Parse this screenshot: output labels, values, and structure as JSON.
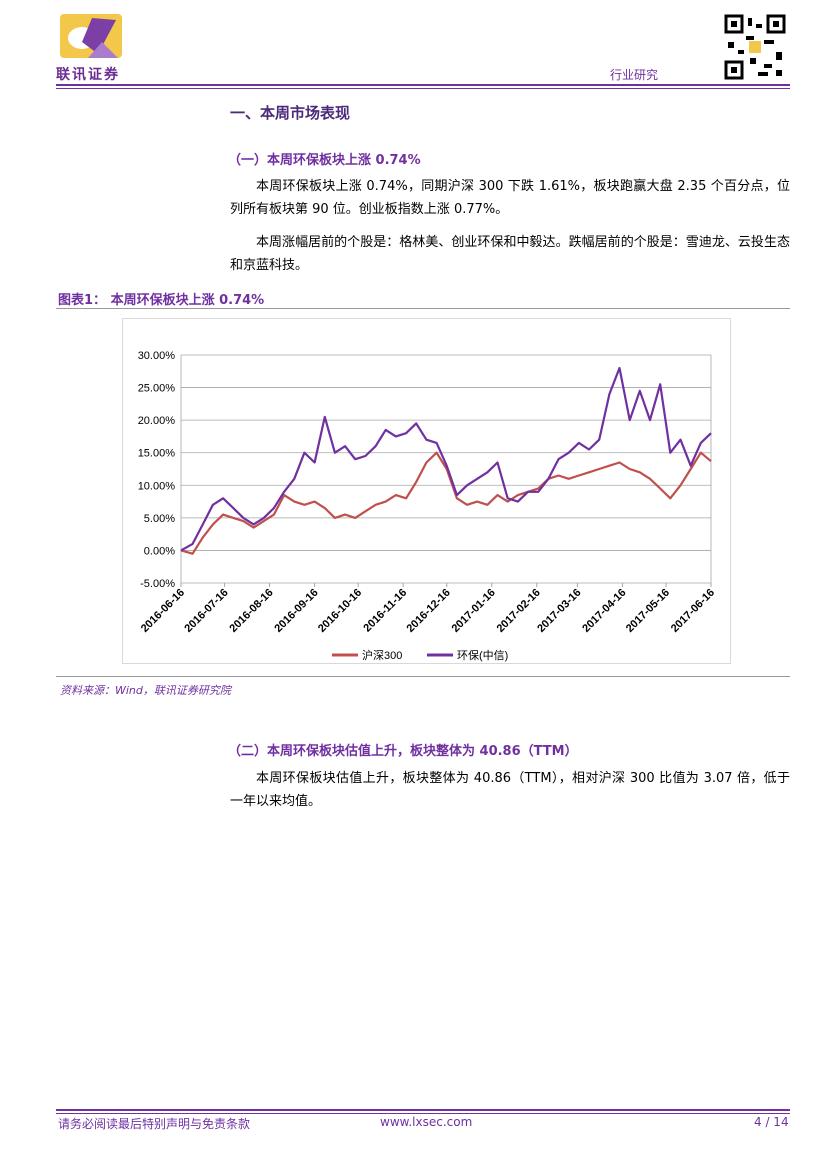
{
  "header": {
    "logo_text": "联讯证券",
    "category": "行业研究"
  },
  "section_title": "一、本周市场表现",
  "sub1": {
    "title": "（一）本周环保板块上涨 0.74%",
    "paragraphs": [
      "本周环保板块上涨 0.74%，同期沪深 300 下跌 1.61%，板块跑赢大盘 2.35 个百分点，位列所有板块第 90 位。创业板指数上涨 0.77%。",
      "本周涨幅居前的个股是：格林美、创业环保和中毅达。跌幅居前的个股是：雪迪龙、云投生态和京蓝科技。"
    ]
  },
  "figure": {
    "label": "图表1：",
    "title": "本周环保板块上涨 0.74%",
    "source": "资料来源：Wind，联讯证券研究院"
  },
  "chart_data": {
    "type": "line",
    "x": [
      "2016-06-16",
      "2016-06-24",
      "2016-07-01",
      "2016-07-08",
      "2016-07-15",
      "2016-07-22",
      "2016-07-29",
      "2016-08-05",
      "2016-08-12",
      "2016-08-19",
      "2016-08-26",
      "2016-09-02",
      "2016-09-09",
      "2016-09-16",
      "2016-09-23",
      "2016-09-30",
      "2016-10-07",
      "2016-10-14",
      "2016-10-21",
      "2016-10-28",
      "2016-11-04",
      "2016-11-11",
      "2016-11-18",
      "2016-11-25",
      "2016-12-02",
      "2016-12-09",
      "2016-12-16",
      "2016-12-23",
      "2016-12-30",
      "2017-01-06",
      "2017-01-13",
      "2017-01-20",
      "2017-01-27",
      "2017-02-03",
      "2017-02-10",
      "2017-02-17",
      "2017-02-24",
      "2017-03-03",
      "2017-03-10",
      "2017-03-17",
      "2017-03-24",
      "2017-03-31",
      "2017-04-07",
      "2017-04-14",
      "2017-04-21",
      "2017-04-28",
      "2017-05-05",
      "2017-05-12",
      "2017-05-19",
      "2017-05-26",
      "2017-06-02",
      "2017-06-09",
      "2017-06-16"
    ],
    "series": [
      {
        "name": "沪深300",
        "color": "#c0504d",
        "values": [
          0,
          -0.5,
          2,
          4,
          5.5,
          5,
          4.5,
          3.5,
          4.5,
          5.5,
          8.5,
          7.5,
          7,
          7.5,
          6.5,
          5,
          5.5,
          5,
          6,
          7,
          7.5,
          8.5,
          8,
          10.5,
          13.5,
          15,
          12.5,
          8,
          7,
          7.5,
          7,
          8.5,
          7.5,
          8.5,
          9,
          9.5,
          11,
          11.5,
          11,
          11.5,
          12,
          12.5,
          13,
          13.5,
          12.5,
          12,
          11,
          9.5,
          8,
          10,
          12.5,
          15,
          13.7
        ]
      },
      {
        "name": "环保(中信)",
        "color": "#7030a0",
        "values": [
          0,
          1,
          4,
          7,
          8,
          6.5,
          5,
          4,
          5,
          6.5,
          9,
          11,
          15,
          13.5,
          20.5,
          15,
          16,
          14,
          14.5,
          16,
          18.5,
          17.5,
          18,
          19.5,
          17,
          16.5,
          13,
          8.5,
          10,
          11,
          12,
          13.5,
          8,
          7.5,
          9,
          9,
          11,
          14,
          15,
          16.5,
          15.5,
          17,
          24,
          28,
          20,
          24.5,
          20,
          25.5,
          15,
          17,
          13,
          16.5,
          18
        ]
      }
    ],
    "xticks": [
      "2016-06-16",
      "2016-07-16",
      "2016-08-16",
      "2016-09-16",
      "2016-10-16",
      "2016-11-16",
      "2016-12-16",
      "2017-01-16",
      "2017-02-16",
      "2017-03-16",
      "2017-04-16",
      "2017-05-16",
      "2017-06-16"
    ],
    "ylim": [
      -5,
      30
    ],
    "yticks": [
      {
        "value": -5,
        "label": "-5.00%"
      },
      {
        "value": 0,
        "label": "0.00%"
      },
      {
        "value": 5,
        "label": "5.00%"
      },
      {
        "value": 10,
        "label": "10.00%"
      },
      {
        "value": 15,
        "label": "15.00%"
      },
      {
        "value": 20,
        "label": "20.00%"
      },
      {
        "value": 25,
        "label": "25.00%"
      },
      {
        "value": 30,
        "label": "30.00%"
      }
    ],
    "grid": true,
    "legend": "bottom"
  },
  "sub2": {
    "title": "（二）本周环保板块估值上升，板块整体为 40.86（TTM）",
    "paragraphs": [
      "本周环保板块估值上升，板块整体为 40.86（TTM），相对沪深 300 比值为 3.07 倍，低于一年以来均值。"
    ]
  },
  "footer": {
    "disclaimer": "请务必阅读最后特别声明与免责条款",
    "website": "www.lxsec.com",
    "page": "4 / 14"
  }
}
